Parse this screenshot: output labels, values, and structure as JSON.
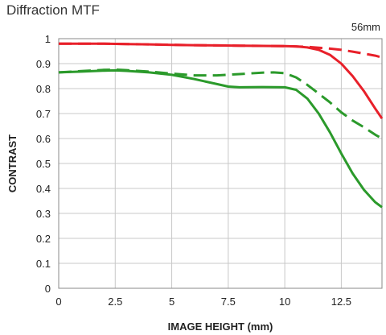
{
  "page": {
    "title": "Diffraction MTF"
  },
  "chart_data": {
    "type": "line",
    "title": "Diffraction MTF",
    "annotation": "56mm",
    "xlabel": "IMAGE HEIGHT (mm)",
    "ylabel": "CONTRAST",
    "xlim": [
      0,
      14.3
    ],
    "ylim": [
      0,
      1
    ],
    "x_ticks": [
      "0",
      "2.5",
      "5",
      "7.5",
      "10",
      "12.5"
    ],
    "y_ticks": [
      "0",
      "0.1",
      "0.2",
      "0.3",
      "0.4",
      "0.5",
      "0.6",
      "0.7",
      "0.8",
      "0.9",
      "1"
    ],
    "grid": true,
    "colors": {
      "red": "#e8202a",
      "green": "#2b9a2b",
      "grid": "#c8c8c8"
    },
    "series": [
      {
        "color": "red",
        "style": "solid",
        "x": [
          0,
          1,
          2,
          3,
          4,
          5,
          6,
          7,
          8,
          9,
          10,
          10.5,
          11,
          11.5,
          12,
          12.5,
          13,
          13.5,
          14,
          14.3
        ],
        "y": [
          0.98,
          0.98,
          0.98,
          0.978,
          0.977,
          0.975,
          0.974,
          0.973,
          0.972,
          0.971,
          0.97,
          0.969,
          0.965,
          0.955,
          0.935,
          0.9,
          0.85,
          0.79,
          0.72,
          0.68
        ]
      },
      {
        "color": "red",
        "style": "dashed",
        "x": [
          0,
          2,
          4,
          6,
          8,
          10,
          11,
          12,
          12.5,
          13,
          13.5,
          14,
          14.3
        ],
        "y": [
          0.98,
          0.98,
          0.977,
          0.974,
          0.972,
          0.97,
          0.967,
          0.96,
          0.955,
          0.948,
          0.94,
          0.932,
          0.925
        ]
      },
      {
        "color": "green",
        "style": "solid",
        "x": [
          0,
          1,
          2,
          2.5,
          3,
          4,
          5,
          6,
          7,
          7.5,
          8,
          9,
          10,
          10.5,
          11,
          11.5,
          12,
          12.5,
          13,
          13.5,
          14,
          14.3
        ],
        "y": [
          0.865,
          0.868,
          0.872,
          0.873,
          0.871,
          0.865,
          0.855,
          0.838,
          0.818,
          0.808,
          0.805,
          0.806,
          0.805,
          0.795,
          0.76,
          0.7,
          0.625,
          0.54,
          0.46,
          0.395,
          0.345,
          0.325
        ]
      },
      {
        "color": "green",
        "style": "dashed",
        "x": [
          0,
          1,
          2,
          2.5,
          3,
          4,
          5,
          6,
          7,
          8,
          9,
          9.5,
          10,
          10.5,
          11,
          11.5,
          12,
          12.5,
          13,
          13.5,
          14,
          14.3
        ],
        "y": [
          0.865,
          0.87,
          0.875,
          0.876,
          0.874,
          0.868,
          0.86,
          0.853,
          0.853,
          0.858,
          0.864,
          0.865,
          0.862,
          0.845,
          0.815,
          0.78,
          0.745,
          0.705,
          0.672,
          0.645,
          0.615,
          0.6
        ]
      }
    ]
  }
}
